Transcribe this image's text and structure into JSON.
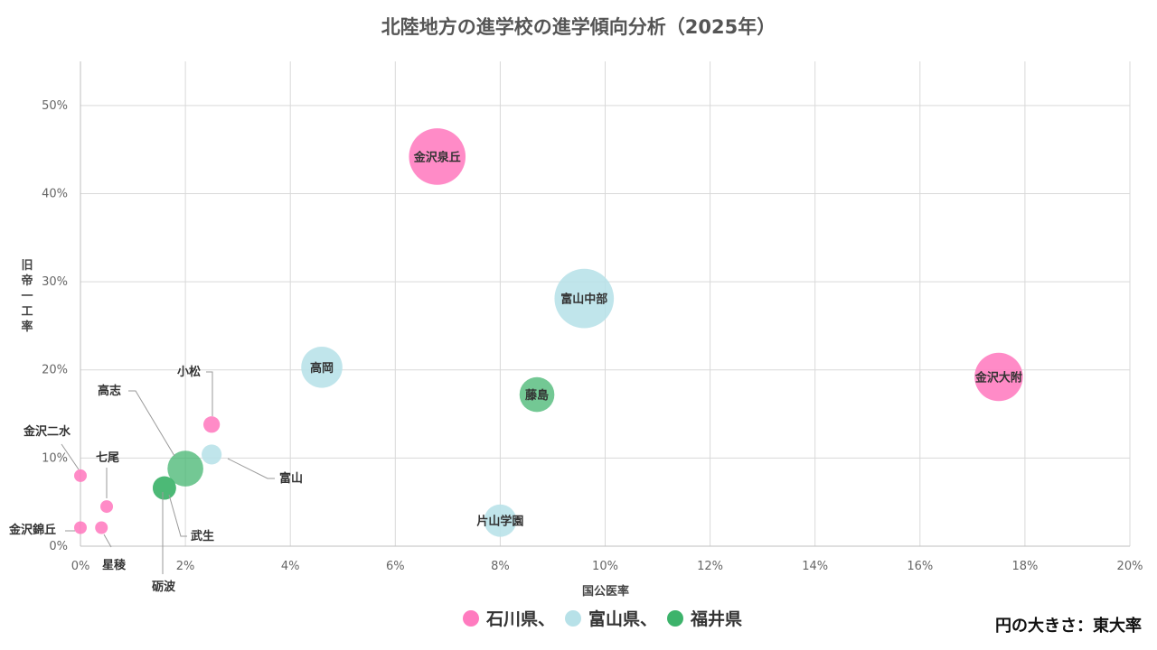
{
  "chart_data": {
    "type": "bubble",
    "title": "北陸地方の進学校の進学傾向分析（2025年）",
    "xlabel": "国公医率",
    "ylabel": "旧帝一工率",
    "xlim": [
      0,
      20
    ],
    "ylim": [
      0,
      55
    ],
    "x_ticks": [
      0,
      2,
      4,
      6,
      8,
      10,
      12,
      14,
      16,
      18,
      20
    ],
    "x_tick_labels": [
      "0%",
      "2%",
      "4%",
      "6%",
      "8%",
      "10%",
      "12%",
      "14%",
      "16%",
      "18%",
      "20%"
    ],
    "y_ticks": [
      0,
      10,
      20,
      30,
      40,
      50
    ],
    "y_tick_labels": [
      "0%",
      "10%",
      "20%",
      "30%",
      "40%",
      "50%"
    ],
    "grid": true,
    "size_note": "円の大きさ：東大率",
    "legend": {
      "placement": "bottom",
      "entries": [
        {
          "key": "ishikawa",
          "label": "石川県、",
          "color": "#ff7bbf"
        },
        {
          "key": "toyama",
          "label": "富山県、",
          "color": "#b7e1e8"
        },
        {
          "key": "fukui",
          "label": "福井県",
          "color": "#3db36b"
        }
      ]
    },
    "series": [
      {
        "prefecture": "ishikawa",
        "color": "#ff7bbf",
        "points": [
          {
            "name": "金沢泉丘",
            "x": 6.8,
            "y": 44.2,
            "size": 10.0
          },
          {
            "name": "金沢大附",
            "x": 17.5,
            "y": 19.2,
            "size": 7.3
          },
          {
            "name": "小松",
            "x": 2.5,
            "y": 13.8,
            "size": 0.85
          },
          {
            "name": "金沢二水",
            "x": 0.0,
            "y": 8.0,
            "size": 0.5
          },
          {
            "name": "七尾",
            "x": 0.5,
            "y": 4.5,
            "size": 0.5
          },
          {
            "name": "金沢錦丘",
            "x": 0.0,
            "y": 2.1,
            "size": 0.5
          },
          {
            "name": "星稜",
            "x": 0.4,
            "y": 2.1,
            "size": 0.5
          }
        ]
      },
      {
        "prefecture": "toyama",
        "color": "#b7e1e8",
        "points": [
          {
            "name": "富山中部",
            "x": 9.6,
            "y": 28.1,
            "size": 11.0
          },
          {
            "name": "高岡",
            "x": 4.6,
            "y": 20.3,
            "size": 5.3
          },
          {
            "name": "片山学園",
            "x": 8.0,
            "y": 2.9,
            "size": 3.3
          },
          {
            "name": "富山",
            "x": 2.5,
            "y": 10.4,
            "size": 1.25
          }
        ]
      },
      {
        "prefecture": "fukui",
        "color": "#3db36b",
        "points": [
          {
            "name": "藤島",
            "x": 8.7,
            "y": 17.2,
            "size": 3.8
          },
          {
            "name": "高志",
            "x": 2.0,
            "y": 8.8,
            "size": 4.0
          },
          {
            "name": "武生",
            "x": 1.6,
            "y": 6.6,
            "size": 1.7
          },
          {
            "name": "砺波",
            "x": 1.6,
            "y": 6.6,
            "size": 1.7
          }
        ]
      }
    ]
  }
}
